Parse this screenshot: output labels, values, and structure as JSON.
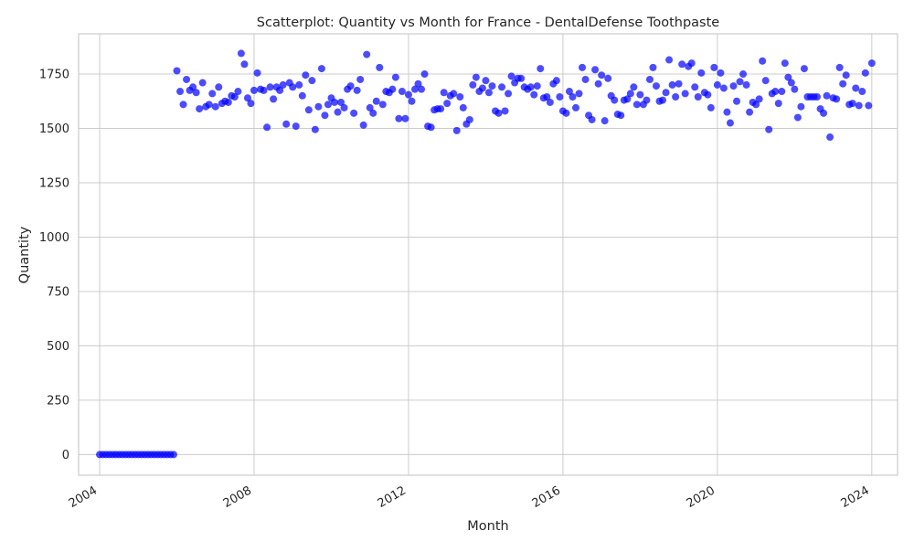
{
  "chart_data": {
    "type": "scatter",
    "title": "Scatterplot: Quantity vs Month for France - DentalDefense Toothpaste",
    "xlabel": "Month",
    "ylabel": "Quantity",
    "xlim": [
      "2003-06-15",
      "2024-09-01"
    ],
    "ylim": [
      -95,
      1935
    ],
    "x_ticks": [
      {
        "date": "2004-01-01",
        "label": "2004"
      },
      {
        "date": "2008-01-01",
        "label": "2008"
      },
      {
        "date": "2012-01-01",
        "label": "2012"
      },
      {
        "date": "2016-01-01",
        "label": "2016"
      },
      {
        "date": "2020-01-01",
        "label": "2020"
      },
      {
        "date": "2024-01-01",
        "label": "2024"
      }
    ],
    "y_ticks": [
      0,
      250,
      500,
      750,
      1000,
      1250,
      1500,
      1750
    ],
    "grid": true,
    "marker_color": "#0000ff",
    "marker_alpha": 0.7,
    "series": [
      {
        "x_start": "2004-01",
        "frequency": "monthly",
        "values": [
          0,
          0,
          0,
          0,
          0,
          0,
          0,
          0,
          0,
          0,
          0,
          0,
          0,
          0,
          0,
          0,
          0,
          0,
          0,
          0,
          0,
          0,
          0,
          0,
          1765,
          1670,
          1610,
          1725,
          1675,
          1690,
          1665,
          1590,
          1710,
          1600,
          1610,
          1660,
          1600,
          1690,
          1615,
          1625,
          1620,
          1650,
          1645,
          1670,
          1845,
          1795,
          1640,
          1615,
          1675,
          1755,
          1680,
          1675,
          1505,
          1690,
          1635,
          1690,
          1675,
          1700,
          1520,
          1710,
          1690,
          1510,
          1700,
          1650,
          1745,
          1585,
          1720,
          1495,
          1600,
          1775,
          1560,
          1610,
          1640,
          1620,
          1575,
          1620,
          1595,
          1680,
          1695,
          1570,
          1675,
          1725,
          1515,
          1840,
          1595,
          1570,
          1625,
          1780,
          1610,
          1670,
          1665,
          1680,
          1735,
          1545,
          1670,
          1545,
          1655,
          1625,
          1680,
          1705,
          1680,
          1750,
          1510,
          1505,
          1585,
          1590,
          1590,
          1665,
          1615,
          1650,
          1660,
          1490,
          1645,
          1595,
          1520,
          1540,
          1700,
          1735,
          1670,
          1685,
          1720,
          1665,
          1695,
          1580,
          1570,
          1690,
          1580,
          1660,
          1740,
          1710,
          1730,
          1730,
          1690,
          1680,
          1690,
          1655,
          1695,
          1775,
          1640,
          1645,
          1620,
          1705,
          1720,
          1645,
          1580,
          1570,
          1670,
          1645,
          1595,
          1660,
          1780,
          1725,
          1560,
          1540,
          1770,
          1705,
          1745,
          1535,
          1730,
          1650,
          1630,
          1565,
          1560,
          1630,
          1635,
          1660,
          1690,
          1610,
          1655,
          1610,
          1630,
          1725,
          1780,
          1695,
          1625,
          1630,
          1665,
          1815,
          1700,
          1645,
          1705,
          1795,
          1660,
          1785,
          1800,
          1690,
          1645,
          1755,
          1665,
          1655,
          1595,
          1780,
          1700,
          1755,
          1685,
          1575,
          1525,
          1695,
          1625,
          1715,
          1750,
          1700,
          1575,
          1620,
          1610,
          1635,
          1810,
          1720,
          1495,
          1660,
          1670,
          1615,
          1670,
          1800,
          1735,
          1710,
          1680,
          1550,
          1600,
          1775,
          1645,
          1645,
          1645,
          1645,
          1590,
          1570,
          1650,
          1460,
          1640,
          1635,
          1780,
          1705,
          1745,
          1610,
          1615,
          1685,
          1605,
          1670,
          1755,
          1605,
          1800
        ]
      }
    ]
  }
}
